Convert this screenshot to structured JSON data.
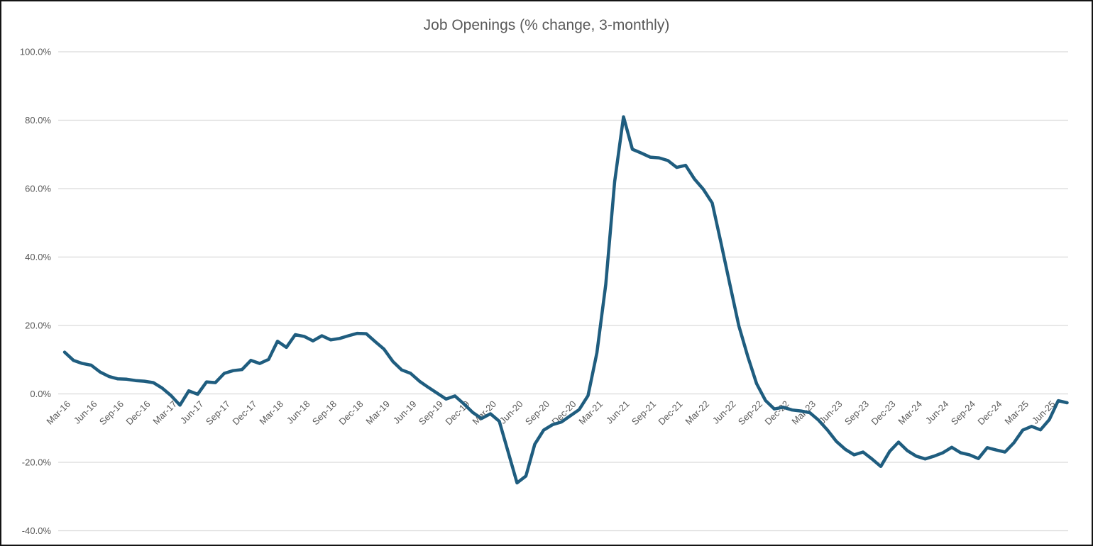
{
  "chart_data": {
    "type": "line",
    "title": "Job Openings (% change, 3-monthly)",
    "series_name": "Job Openings (% change, 3-monthly)",
    "x": [
      "Mar-16",
      "Apr-16",
      "May-16",
      "Jun-16",
      "Jul-16",
      "Aug-16",
      "Sep-16",
      "Oct-16",
      "Nov-16",
      "Dec-16",
      "Jan-17",
      "Feb-17",
      "Mar-17",
      "Apr-17",
      "May-17",
      "Jun-17",
      "Jul-17",
      "Aug-17",
      "Sep-17",
      "Oct-17",
      "Nov-17",
      "Dec-17",
      "Jan-18",
      "Feb-18",
      "Mar-18",
      "Apr-18",
      "May-18",
      "Jun-18",
      "Jul-18",
      "Aug-18",
      "Sep-18",
      "Oct-18",
      "Nov-18",
      "Dec-18",
      "Jan-19",
      "Feb-19",
      "Mar-19",
      "Apr-19",
      "May-19",
      "Jun-19",
      "Jul-19",
      "Aug-19",
      "Sep-19",
      "Oct-19",
      "Nov-19",
      "Dec-19",
      "Jan-20",
      "Feb-20",
      "Mar-20",
      "Apr-20",
      "May-20",
      "Jun-20",
      "Jul-20",
      "Aug-20",
      "Sep-20",
      "Oct-20",
      "Nov-20",
      "Dec-20",
      "Jan-21",
      "Feb-21",
      "Mar-21",
      "Apr-21",
      "May-21",
      "Jun-21",
      "Jul-21",
      "Aug-21",
      "Sep-21",
      "Oct-21",
      "Nov-21",
      "Dec-21",
      "Jan-22",
      "Feb-22",
      "Mar-22",
      "Apr-22",
      "May-22",
      "Jun-22",
      "Jul-22",
      "Aug-22",
      "Sep-22",
      "Oct-22",
      "Nov-22",
      "Dec-22",
      "Jan-23",
      "Feb-23",
      "Mar-23",
      "Apr-23",
      "May-23",
      "Jun-23",
      "Jul-23",
      "Aug-23",
      "Sep-23",
      "Oct-23",
      "Nov-23",
      "Dec-23",
      "Jan-24",
      "Feb-24",
      "Mar-24",
      "Apr-24",
      "May-24",
      "Jun-24",
      "Jul-24",
      "Aug-24",
      "Sep-24",
      "Oct-24",
      "Nov-24",
      "Dec-24",
      "Jan-25",
      "Feb-25",
      "Mar-25",
      "Apr-25",
      "May-25",
      "Jun-25",
      "Jul-25",
      "Aug-25"
    ],
    "values": [
      12.2,
      9.8,
      8.9,
      8.4,
      6.4,
      5.1,
      4.4,
      4.3,
      3.9,
      3.7,
      3.3,
      1.7,
      -0.5,
      -3.3,
      0.9,
      -0.1,
      3.5,
      3.3,
      6.0,
      6.8,
      7.1,
      9.8,
      8.9,
      10.1,
      15.4,
      13.6,
      17.3,
      16.8,
      15.5,
      17.0,
      15.8,
      16.2,
      17.0,
      17.7,
      17.6,
      15.3,
      13.1,
      9.5,
      7.0,
      6.0,
      3.7,
      1.9,
      0.2,
      -1.5,
      -0.6,
      -2.9,
      -5.4,
      -7.2,
      -5.8,
      -8.0,
      -17.0,
      -26.0,
      -24.0,
      -14.7,
      -10.6,
      -9.0,
      -8.2,
      -6.4,
      -4.6,
      -0.5,
      12.0,
      32.0,
      62.0,
      81.0,
      71.5,
      70.4,
      69.2,
      69.0,
      68.2,
      66.2,
      66.8,
      62.8,
      59.8,
      55.8,
      44.0,
      31.9,
      19.9,
      11.0,
      3.0,
      -1.9,
      -4.4,
      -3.9,
      -4.7,
      -5.0,
      -5.5,
      -7.7,
      -10.6,
      -13.9,
      -16.2,
      -17.8,
      -17.0,
      -19.0,
      -21.2,
      -16.8,
      -14.1,
      -16.6,
      -18.2,
      -19.0,
      -18.2,
      -17.2,
      -15.6,
      -17.2,
      -17.8,
      -18.9,
      -15.7,
      -16.4,
      -17.0,
      -14.3,
      -10.6,
      -9.5,
      -10.5,
      -7.5,
      -2.0,
      -2.6
    ],
    "x_tick_every": 3,
    "x_tick_labels": [
      "Mar-16",
      "Jun-16",
      "Sep-16",
      "Dec-16",
      "Mar-17",
      "Jun-17",
      "Sep-17",
      "Dec-17",
      "Mar-18",
      "Jun-18",
      "Sep-18",
      "Dec-18",
      "Mar-19",
      "Jun-19",
      "Sep-19",
      "Dec-19",
      "Mar-20",
      "Jun-20",
      "Sep-20",
      "Dec-20",
      "Mar-21",
      "Jun-21",
      "Sep-21",
      "Dec-21",
      "Mar-22",
      "Jun-22",
      "Sep-22",
      "Dec-22",
      "Mar-23",
      "Jun-23",
      "Sep-23",
      "Dec-23",
      "Mar-24",
      "Jun-24",
      "Sep-24",
      "Dec-24",
      "Mar-25",
      "Jun-25"
    ],
    "ylim": [
      -40,
      100
    ],
    "ytick_step": 20,
    "ytick_labels": [
      "100.0%",
      "80.0%",
      "60.0%",
      "40.0%",
      "20.0%",
      "0.0%",
      "-20.0%",
      "-40.0%"
    ],
    "grid": "horizontal",
    "legend": "none",
    "xlabel": "",
    "ylabel": "",
    "colors": {
      "line": "#1F5D7F",
      "grid": "#D9D9D9",
      "tick_label": "#595959",
      "title": "#595959",
      "background": "#FFFFFF",
      "border": "#141414"
    }
  }
}
